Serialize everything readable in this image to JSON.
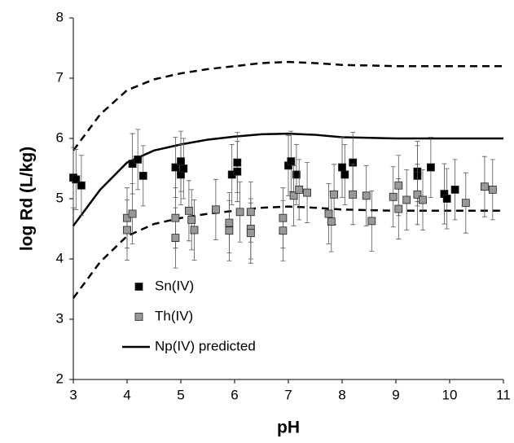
{
  "chart_data": {
    "type": "scatter",
    "xlabel": "pH",
    "ylabel": "log Rd (L/kg)",
    "xlim": [
      3,
      11
    ],
    "ylim": [
      2,
      8
    ],
    "xticks": [
      3,
      4,
      5,
      6,
      7,
      8,
      9,
      10,
      11
    ],
    "yticks": [
      2,
      3,
      4,
      5,
      6,
      7,
      8
    ],
    "grid": false,
    "legend": "lower left",
    "series": [
      {
        "name": "Sn(IV)",
        "type": "scatter",
        "color": "#000000",
        "x": [
          3.0,
          3.05,
          3.15,
          4.1,
          4.2,
          4.3,
          4.9,
          5.0,
          5.0,
          5.05,
          5.95,
          6.05,
          6.05,
          7.0,
          7.05,
          7.15,
          8.0,
          8.05,
          8.2,
          9.4,
          9.4,
          9.65,
          9.9,
          9.95,
          10.1
        ],
        "values": [
          5.35,
          5.32,
          5.22,
          5.58,
          5.65,
          5.38,
          5.52,
          5.62,
          5.4,
          5.5,
          5.4,
          5.6,
          5.45,
          5.55,
          5.62,
          5.4,
          5.52,
          5.4,
          5.6,
          5.45,
          5.38,
          5.52,
          5.08,
          5.0,
          5.15
        ],
        "errors": [
          0.5,
          0.5,
          0.5,
          0.5,
          0.5,
          0.5,
          0.5,
          0.5,
          0.5,
          0.5,
          0.5,
          0.5,
          0.5,
          0.5,
          0.5,
          0.5,
          0.5,
          0.5,
          0.5,
          0.5,
          0.5,
          0.5,
          0.5,
          0.5,
          0.5
        ]
      },
      {
        "name": "Th(IV)",
        "type": "scatter",
        "color": "#999999",
        "x": [
          4.0,
          4.0,
          4.1,
          4.9,
          4.9,
          5.15,
          5.2,
          5.25,
          5.65,
          5.9,
          5.9,
          6.1,
          6.3,
          6.3,
          6.3,
          6.9,
          6.9,
          7.1,
          7.2,
          7.35,
          7.75,
          7.8,
          7.85,
          8.2,
          8.45,
          8.55,
          8.95,
          9.05,
          9.05,
          9.2,
          9.4,
          9.5,
          10.3,
          10.65,
          10.8
        ],
        "values": [
          4.68,
          4.48,
          4.75,
          4.68,
          4.35,
          4.8,
          4.65,
          4.48,
          4.82,
          4.6,
          4.47,
          4.78,
          4.78,
          4.5,
          4.43,
          4.68,
          4.47,
          5.05,
          5.15,
          5.1,
          4.75,
          4.62,
          5.07,
          5.07,
          5.05,
          4.63,
          5.03,
          5.22,
          4.83,
          4.98,
          5.07,
          4.98,
          4.93,
          5.2,
          5.15
        ],
        "errors": [
          0.5,
          0.5,
          0.5,
          0.5,
          0.5,
          0.5,
          0.5,
          0.5,
          0.5,
          0.5,
          0.5,
          0.5,
          0.5,
          0.5,
          0.5,
          0.5,
          0.5,
          0.5,
          0.5,
          0.5,
          0.5,
          0.5,
          0.5,
          0.5,
          0.5,
          0.5,
          0.5,
          0.5,
          0.5,
          0.5,
          0.5,
          0.5,
          0.5,
          0.5,
          0.5
        ]
      },
      {
        "name": "Np(IV) predicted",
        "type": "line",
        "color": "#000000",
        "dash": false,
        "x": [
          3,
          3.5,
          4,
          4.5,
          5,
          5.5,
          6,
          6.5,
          7,
          7.5,
          8,
          9,
          10,
          11
        ],
        "values": [
          4.55,
          5.15,
          5.6,
          5.8,
          5.9,
          5.98,
          6.03,
          6.07,
          6.08,
          6.06,
          6.02,
          6.0,
          6.0,
          6.0
        ]
      },
      {
        "type": "line",
        "color": "#000000",
        "dash": true,
        "x": [
          3,
          3.5,
          4,
          4.5,
          5,
          5.5,
          6,
          6.5,
          7,
          7.5,
          8,
          9,
          10,
          11
        ],
        "values": [
          5.8,
          6.4,
          6.8,
          6.98,
          7.08,
          7.15,
          7.2,
          7.25,
          7.27,
          7.25,
          7.22,
          7.2,
          7.2,
          7.2
        ]
      },
      {
        "type": "line",
        "color": "#000000",
        "dash": true,
        "x": [
          3,
          3.5,
          4,
          4.5,
          5,
          5.5,
          6,
          6.5,
          7,
          7.5,
          8,
          9,
          10,
          11
        ],
        "values": [
          3.35,
          3.95,
          4.38,
          4.58,
          4.68,
          4.75,
          4.8,
          4.85,
          4.87,
          4.85,
          4.82,
          4.8,
          4.8,
          4.8
        ]
      }
    ]
  }
}
